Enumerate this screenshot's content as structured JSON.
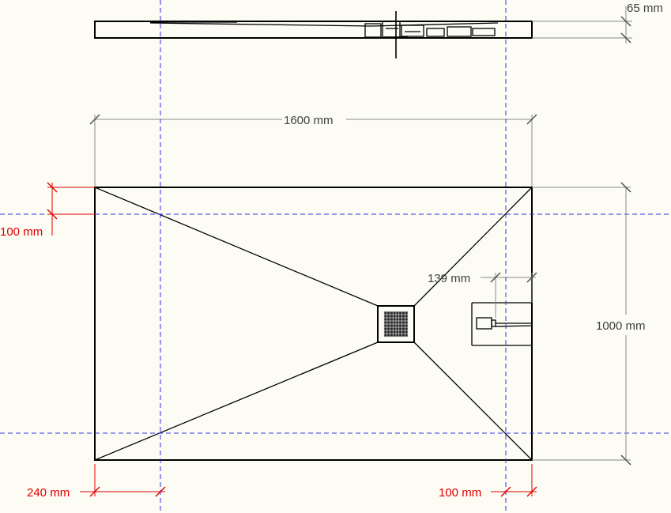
{
  "dimensions": {
    "height_profile": "65 mm",
    "length": "1600 mm",
    "width": "1000 mm",
    "outlet_offset": "139 mm",
    "top_margin": "100 mm",
    "left_margin": "240 mm",
    "right_margin": "100 mm"
  },
  "colors": {
    "guide": "#3030e0",
    "dimension_red": "#e00000",
    "dimension_gray": "#404040",
    "background": "#fcfcf4"
  }
}
